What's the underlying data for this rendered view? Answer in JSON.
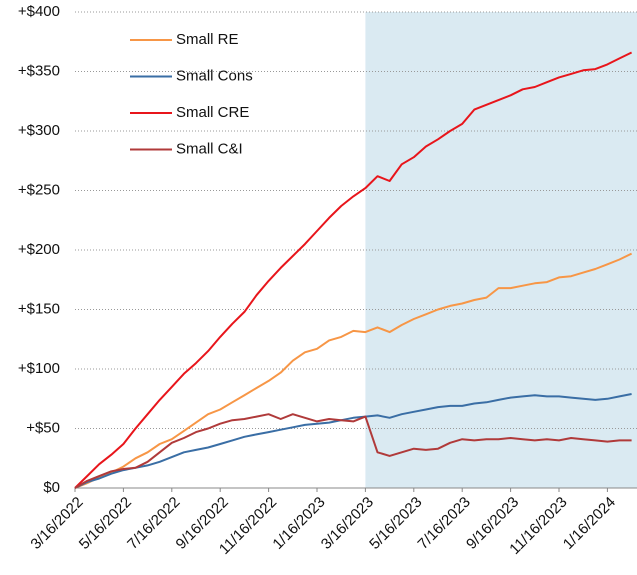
{
  "chart_data": {
    "type": "line",
    "categories": [
      "3/16/2022",
      null,
      null,
      null,
      "5/16/2022",
      null,
      null,
      null,
      "7/16/2022",
      null,
      null,
      null,
      "9/16/2022",
      null,
      null,
      null,
      "11/16/2022",
      null,
      null,
      null,
      "1/16/2023",
      null,
      null,
      null,
      "3/16/2023",
      null,
      null,
      null,
      "5/16/2023",
      null,
      null,
      null,
      "7/16/2023",
      null,
      null,
      null,
      "9/16/2023",
      null,
      null,
      null,
      "11/16/2023",
      null,
      null,
      null,
      "1/16/2024",
      null,
      null
    ],
    "series": [
      {
        "name": "Small RE",
        "color": "#f79646",
        "values": [
          0,
          4,
          9,
          13,
          18,
          25,
          30,
          37,
          41,
          48,
          55,
          62,
          66,
          72,
          78,
          84,
          90,
          97,
          107,
          114,
          117,
          124,
          127,
          132,
          131,
          135,
          131,
          137,
          142,
          146,
          150,
          153,
          155,
          158,
          160,
          168,
          168,
          170,
          172,
          173,
          177,
          178,
          181,
          184,
          188,
          192,
          197
        ]
      },
      {
        "name": "Small Cons",
        "color": "#3a6ea5",
        "values": [
          0,
          5,
          8,
          12,
          15,
          17,
          19,
          22,
          26,
          30,
          32,
          34,
          37,
          40,
          43,
          45,
          47,
          49,
          51,
          53,
          54,
          55,
          57,
          59,
          60,
          61,
          59,
          62,
          64,
          66,
          68,
          69,
          69,
          71,
          72,
          74,
          76,
          77,
          78,
          77,
          77,
          76,
          75,
          74,
          75,
          77,
          79
        ]
      },
      {
        "name": "Small CRE",
        "color": "#e8151b",
        "values": [
          0,
          10,
          20,
          28,
          37,
          50,
          62,
          74,
          85,
          96,
          105,
          115,
          127,
          138,
          148,
          162,
          174,
          185,
          195,
          205,
          216,
          227,
          237,
          245,
          252,
          262,
          258,
          272,
          278,
          287,
          293,
          300,
          306,
          318,
          322,
          326,
          330,
          335,
          337,
          341,
          345,
          348,
          351,
          352,
          356,
          361,
          366
        ]
      },
      {
        "name": "Small C&I",
        "color": "#b03a3a",
        "values": [
          0,
          6,
          10,
          14,
          16,
          17,
          22,
          30,
          38,
          42,
          47,
          50,
          54,
          57,
          58,
          60,
          62,
          58,
          62,
          59,
          56,
          58,
          57,
          56,
          60,
          30,
          27,
          30,
          33,
          32,
          33,
          38,
          41,
          40,
          41,
          41,
          42,
          41,
          40,
          41,
          40,
          42,
          41,
          40,
          39,
          40,
          40
        ]
      }
    ],
    "ylim": [
      0,
      400
    ],
    "yticks": [
      {
        "value": 0,
        "label": "$0"
      },
      {
        "value": 50,
        "label": "+$50"
      },
      {
        "value": 100,
        "label": "+$100"
      },
      {
        "value": 150,
        "label": "+$150"
      },
      {
        "value": 200,
        "label": "+$200"
      },
      {
        "value": 250,
        "label": "+$250"
      },
      {
        "value": 300,
        "label": "+$300"
      },
      {
        "value": 350,
        "label": "+$350"
      },
      {
        "value": 400,
        "label": "+$400"
      }
    ],
    "grid": true,
    "legend": "upper-left",
    "shaded_from": "3/16/2023",
    "shade_color": "#daeaf2"
  }
}
